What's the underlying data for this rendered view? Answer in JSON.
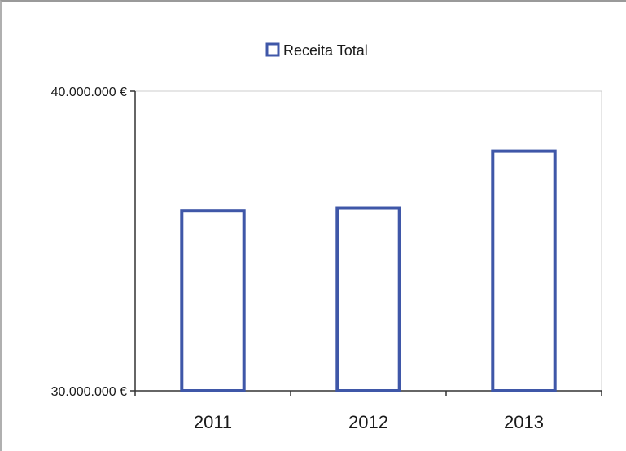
{
  "chart_data": {
    "type": "bar",
    "categories": [
      "2011",
      "2012",
      "2013"
    ],
    "series": [
      {
        "name": "Receita Total",
        "values": [
          36000000,
          36100000,
          38000000
        ]
      }
    ],
    "ylim": [
      30000000,
      40000000
    ],
    "y_tick_labels": [
      "40.000.000 €",
      "30.000.000 €"
    ],
    "y_tick_values": [
      40000000,
      30000000
    ],
    "legend": {
      "label": "Receita Total",
      "placement": "top"
    },
    "grid": false,
    "colors": {
      "bar_outline": "#3f57a8",
      "bar_fill": "#ffffff",
      "axis": "#333333",
      "plot_border": "#cccccc"
    }
  }
}
